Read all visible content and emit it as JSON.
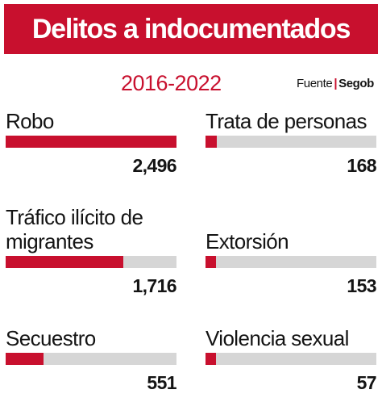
{
  "header": {
    "title": "Delitos a indocumentados",
    "subtitle": "2016-2022",
    "source_label": "Fuente",
    "source_separator": "|",
    "source_name": "Segob"
  },
  "colors": {
    "banner": "#c8102e",
    "accent": "#c8102e",
    "track": "#d6d6d6",
    "text": "#141414"
  },
  "chart_data": {
    "type": "bar",
    "title": "Delitos a indocumentados",
    "subtitle": "2016-2022",
    "categories": [
      "Robo",
      "Trata de personas",
      "Tráfico ilícito de migrantes",
      "Extorsión",
      "Secuestro",
      "Violencia sexual"
    ],
    "values": [
      2496,
      168,
      1716,
      153,
      551,
      57
    ],
    "value_labels": [
      "2,496",
      "168",
      "1,716",
      "153",
      "551",
      "57"
    ],
    "label_lines": [
      [
        "Robo"
      ],
      [
        "Trata de personas"
      ],
      [
        "Tráfico ilícito de",
        "migrantes"
      ],
      [
        "Extorsión"
      ],
      [
        "Secuestro"
      ],
      [
        "Violencia sexual"
      ]
    ],
    "xlim": [
      0,
      2496
    ],
    "source": "Segob"
  }
}
